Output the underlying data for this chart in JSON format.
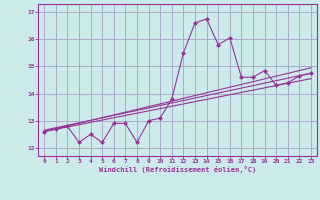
{
  "xlabel": "Windchill (Refroidissement éolien,°C)",
  "background_color": "#cceaea",
  "grid_color": "#aaaacc",
  "line_color": "#993399",
  "xlim": [
    -0.5,
    23.5
  ],
  "ylim": [
    11.7,
    17.3
  ],
  "xticks": [
    0,
    1,
    2,
    3,
    4,
    5,
    6,
    7,
    8,
    9,
    10,
    11,
    12,
    13,
    14,
    15,
    16,
    17,
    18,
    19,
    20,
    21,
    22,
    23
  ],
  "yticks": [
    12,
    13,
    14,
    15,
    16,
    17
  ],
  "series1_x": [
    0,
    1,
    2,
    3,
    4,
    5,
    6,
    7,
    8,
    9,
    10,
    11,
    12,
    13,
    14,
    15,
    16,
    17,
    18,
    19,
    20,
    21,
    22,
    23
  ],
  "series1_y": [
    12.6,
    12.7,
    12.8,
    12.2,
    12.5,
    12.2,
    12.9,
    12.9,
    12.2,
    13.0,
    13.1,
    13.8,
    15.5,
    16.6,
    16.75,
    15.8,
    16.05,
    14.6,
    14.6,
    14.85,
    14.3,
    14.4,
    14.65,
    14.75
  ],
  "series2_x": [
    0,
    23
  ],
  "series2_y": [
    12.6,
    14.55
  ],
  "series3_x": [
    0,
    23
  ],
  "series3_y": [
    12.6,
    14.95
  ],
  "series4_x": [
    0,
    23
  ],
  "series4_y": [
    12.65,
    14.75
  ]
}
